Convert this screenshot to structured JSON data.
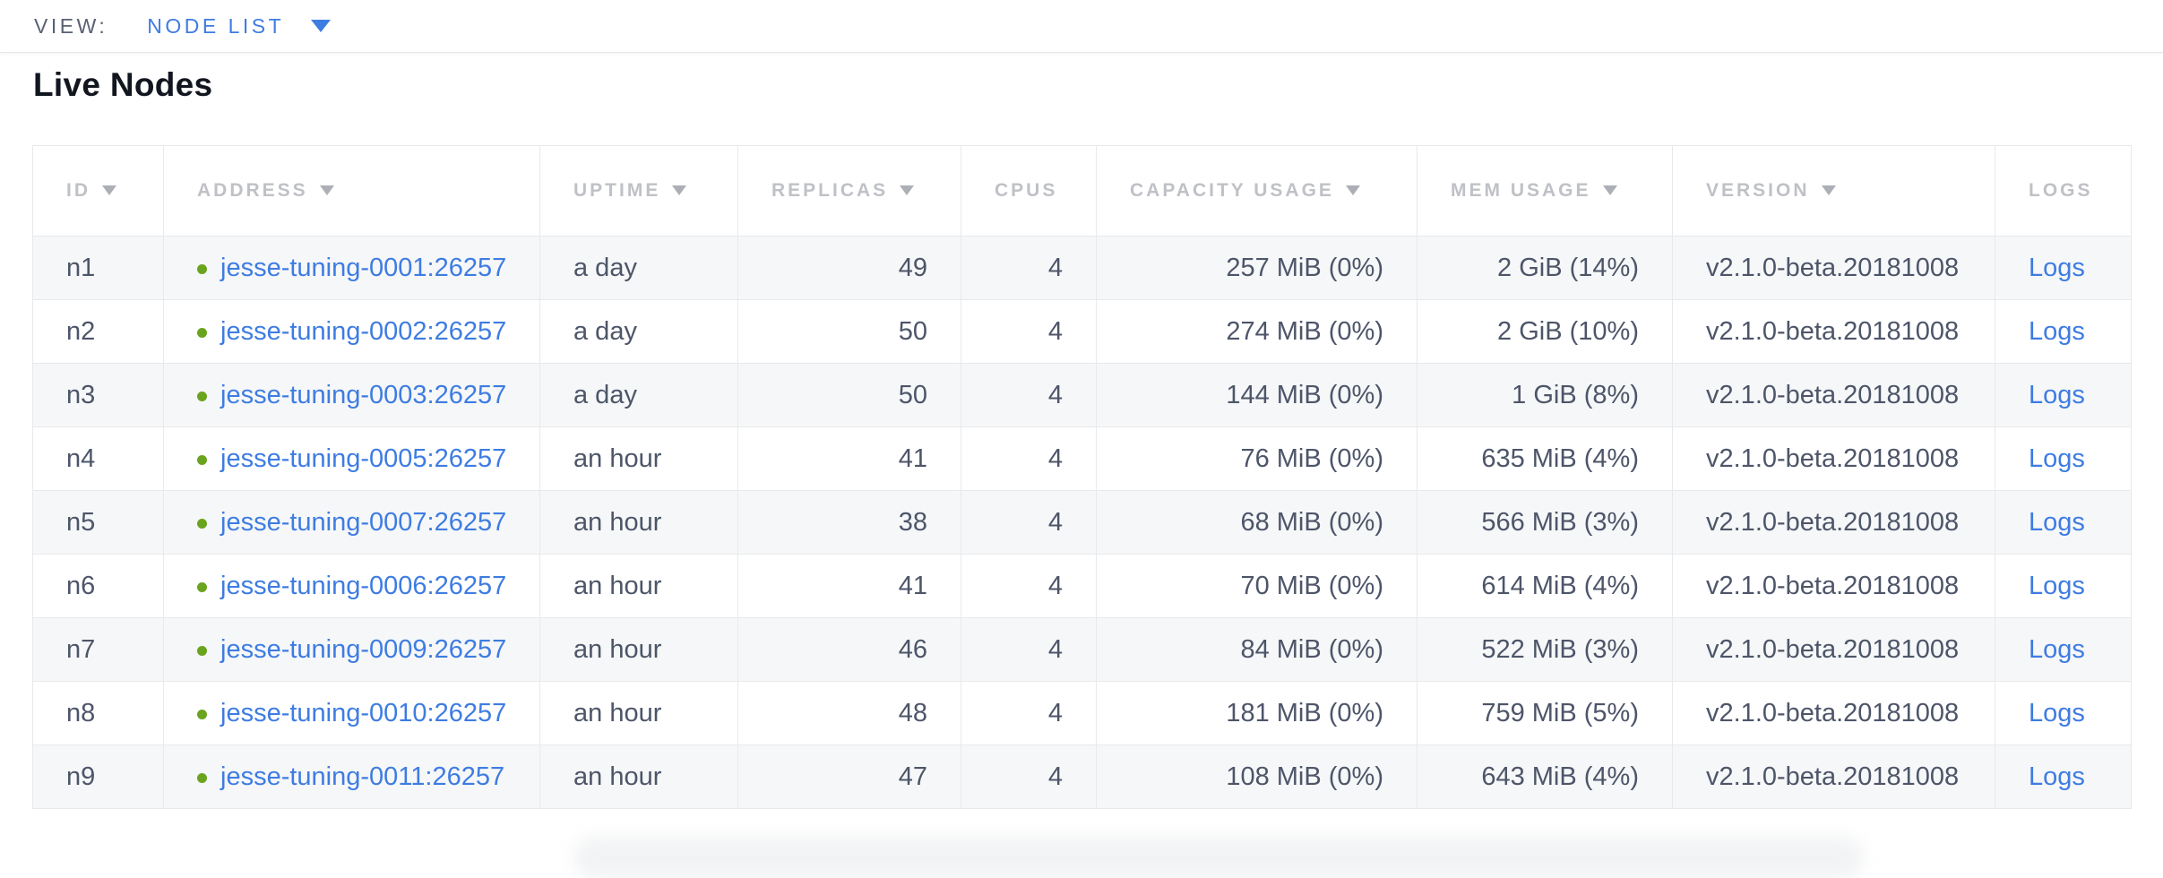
{
  "view_bar": {
    "label": "VIEW:",
    "selected": "NODE LIST"
  },
  "page": {
    "title": "Live Nodes"
  },
  "colors": {
    "accent_blue": "#3e7ce2",
    "status_green": "#6aa41f",
    "row_stripe": "#f6f7f8",
    "table_border": "#e8e9eb",
    "header_text": "#bfc1c6",
    "cell_text": "#4d5569"
  },
  "table": {
    "columns": [
      {
        "key": "id",
        "label": "ID",
        "sortable": true,
        "align": "left"
      },
      {
        "key": "address",
        "label": "ADDRESS",
        "sortable": true,
        "align": "left"
      },
      {
        "key": "uptime",
        "label": "UPTIME",
        "sortable": true,
        "align": "left"
      },
      {
        "key": "replicas",
        "label": "REPLICAS",
        "sortable": true,
        "align": "right"
      },
      {
        "key": "cpus",
        "label": "CPUS",
        "sortable": false,
        "align": "right"
      },
      {
        "key": "capacity",
        "label": "CAPACITY USAGE",
        "sortable": true,
        "align": "right"
      },
      {
        "key": "mem",
        "label": "MEM USAGE",
        "sortable": true,
        "align": "right"
      },
      {
        "key": "version",
        "label": "VERSION",
        "sortable": true,
        "align": "left"
      },
      {
        "key": "logs",
        "label": "LOGS",
        "sortable": false,
        "align": "left"
      }
    ],
    "rows": [
      {
        "id": "n1",
        "status": "live",
        "address": "jesse-tuning-0001:26257",
        "uptime": "a day",
        "replicas": "49",
        "cpus": "4",
        "capacity": "257 MiB (0%)",
        "mem": "2 GiB (14%)",
        "version": "v2.1.0-beta.20181008",
        "logs": "Logs"
      },
      {
        "id": "n2",
        "status": "live",
        "address": "jesse-tuning-0002:26257",
        "uptime": "a day",
        "replicas": "50",
        "cpus": "4",
        "capacity": "274 MiB (0%)",
        "mem": "2 GiB (10%)",
        "version": "v2.1.0-beta.20181008",
        "logs": "Logs"
      },
      {
        "id": "n3",
        "status": "live",
        "address": "jesse-tuning-0003:26257",
        "uptime": "a day",
        "replicas": "50",
        "cpus": "4",
        "capacity": "144 MiB (0%)",
        "mem": "1 GiB (8%)",
        "version": "v2.1.0-beta.20181008",
        "logs": "Logs"
      },
      {
        "id": "n4",
        "status": "live",
        "address": "jesse-tuning-0005:26257",
        "uptime": "an hour",
        "replicas": "41",
        "cpus": "4",
        "capacity": "76 MiB (0%)",
        "mem": "635 MiB (4%)",
        "version": "v2.1.0-beta.20181008",
        "logs": "Logs"
      },
      {
        "id": "n5",
        "status": "live",
        "address": "jesse-tuning-0007:26257",
        "uptime": "an hour",
        "replicas": "38",
        "cpus": "4",
        "capacity": "68 MiB (0%)",
        "mem": "566 MiB (3%)",
        "version": "v2.1.0-beta.20181008",
        "logs": "Logs"
      },
      {
        "id": "n6",
        "status": "live",
        "address": "jesse-tuning-0006:26257",
        "uptime": "an hour",
        "replicas": "41",
        "cpus": "4",
        "capacity": "70 MiB (0%)",
        "mem": "614 MiB (4%)",
        "version": "v2.1.0-beta.20181008",
        "logs": "Logs"
      },
      {
        "id": "n7",
        "status": "live",
        "address": "jesse-tuning-0009:26257",
        "uptime": "an hour",
        "replicas": "46",
        "cpus": "4",
        "capacity": "84 MiB (0%)",
        "mem": "522 MiB (3%)",
        "version": "v2.1.0-beta.20181008",
        "logs": "Logs"
      },
      {
        "id": "n8",
        "status": "live",
        "address": "jesse-tuning-0010:26257",
        "uptime": "an hour",
        "replicas": "48",
        "cpus": "4",
        "capacity": "181 MiB (0%)",
        "mem": "759 MiB (5%)",
        "version": "v2.1.0-beta.20181008",
        "logs": "Logs"
      },
      {
        "id": "n9",
        "status": "live",
        "address": "jesse-tuning-0011:26257",
        "uptime": "an hour",
        "replicas": "47",
        "cpus": "4",
        "capacity": "108 MiB (0%)",
        "mem": "643 MiB (4%)",
        "version": "v2.1.0-beta.20181008",
        "logs": "Logs"
      }
    ]
  }
}
